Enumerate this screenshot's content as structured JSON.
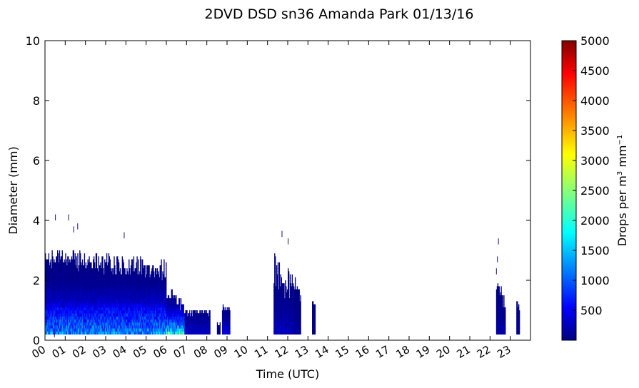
{
  "chart_data": {
    "type": "heatmap",
    "title": "2DVD DSD sn36 Amanda Park 01/13/16",
    "xlabel": "Time (UTC)",
    "ylabel": "Diameter (mm)",
    "colorbar_label_parts": [
      "Drops per m",
      "3",
      " mm",
      "−1"
    ],
    "xlim": [
      0,
      24
    ],
    "ylim": [
      0,
      10
    ],
    "x_ticks": [
      {
        "value": 0,
        "label": "00"
      },
      {
        "value": 1,
        "label": "01"
      },
      {
        "value": 2,
        "label": "02"
      },
      {
        "value": 3,
        "label": "03"
      },
      {
        "value": 4,
        "label": "04"
      },
      {
        "value": 5,
        "label": "05"
      },
      {
        "value": 6,
        "label": "06"
      },
      {
        "value": 7,
        "label": "07"
      },
      {
        "value": 8,
        "label": "08"
      },
      {
        "value": 9,
        "label": "09"
      },
      {
        "value": 10,
        "label": "10"
      },
      {
        "value": 11,
        "label": "11"
      },
      {
        "value": 12,
        "label": "12"
      },
      {
        "value": 13,
        "label": "13"
      },
      {
        "value": 14,
        "label": "14"
      },
      {
        "value": 15,
        "label": "15"
      },
      {
        "value": 16,
        "label": "16"
      },
      {
        "value": 17,
        "label": "17"
      },
      {
        "value": 18,
        "label": "18"
      },
      {
        "value": 19,
        "label": "19"
      },
      {
        "value": 20,
        "label": "20"
      },
      {
        "value": 21,
        "label": "21"
      },
      {
        "value": 22,
        "label": "22"
      },
      {
        "value": 23,
        "label": "23"
      }
    ],
    "y_ticks": [
      {
        "value": 0,
        "label": "0"
      },
      {
        "value": 2,
        "label": "2"
      },
      {
        "value": 4,
        "label": "4"
      },
      {
        "value": 6,
        "label": "6"
      },
      {
        "value": 8,
        "label": "8"
      },
      {
        "value": 10,
        "label": "10"
      }
    ],
    "colorbar_range": [
      0,
      5000
    ],
    "colorbar_ticks": [
      {
        "value": 500,
        "label": "500"
      },
      {
        "value": 1000,
        "label": "1000"
      },
      {
        "value": 1500,
        "label": "1500"
      },
      {
        "value": 2000,
        "label": "2000"
      },
      {
        "value": 2500,
        "label": "2500"
      },
      {
        "value": 3000,
        "label": "3000"
      },
      {
        "value": 3500,
        "label": "3500"
      },
      {
        "value": 4000,
        "label": "4000"
      },
      {
        "value": 4500,
        "label": "4500"
      },
      {
        "value": 5000,
        "label": "5000"
      }
    ],
    "colormap": "jet",
    "colormap_stops": [
      "#000080",
      "#0000ff",
      "#00ffff",
      "#ffff00",
      "#ff0000",
      "#800000"
    ],
    "regions": [
      {
        "t_start": 0.0,
        "t_end": 6.0,
        "profile": [
          [
            0.2,
            1200
          ],
          [
            0.5,
            900
          ],
          [
            0.9,
            600
          ],
          [
            1.3,
            250
          ],
          [
            1.8,
            80
          ],
          [
            2.4,
            20
          ],
          [
            3.2,
            5
          ]
        ],
        "top_start": 2.7,
        "top_end": 2.3,
        "top_jitter": 0.35
      },
      {
        "t_start": 6.0,
        "t_end": 6.9,
        "profile": [
          [
            0.2,
            1900
          ],
          [
            0.4,
            1100
          ],
          [
            0.8,
            500
          ],
          [
            1.1,
            150
          ],
          [
            1.5,
            30
          ]
        ],
        "top_start": 1.6,
        "top_end": 1.0,
        "top_jitter": 0.25
      },
      {
        "t_start": 6.9,
        "t_end": 8.15,
        "profile": [
          [
            0.2,
            300
          ],
          [
            0.6,
            120
          ],
          [
            0.9,
            40
          ]
        ],
        "top_start": 0.9,
        "top_end": 0.85,
        "top_jitter": 0.1
      },
      {
        "t_start": 8.5,
        "t_end": 8.65,
        "profile": [
          [
            0.2,
            40
          ],
          [
            0.5,
            10
          ]
        ],
        "top_start": 0.5,
        "top_end": 0.5,
        "top_jitter": 0.05
      },
      {
        "t_start": 8.75,
        "t_end": 9.15,
        "profile": [
          [
            0.2,
            400
          ],
          [
            0.6,
            120
          ],
          [
            1.0,
            30
          ]
        ],
        "top_start": 1.05,
        "top_end": 1.0,
        "top_jitter": 0.1
      },
      {
        "t_start": 11.3,
        "t_end": 12.25,
        "profile": [
          [
            0.3,
            250
          ],
          [
            0.8,
            120
          ],
          [
            1.5,
            40
          ],
          [
            2.5,
            10
          ],
          [
            3.4,
            2
          ]
        ],
        "top_start": 2.4,
        "top_end": 1.6,
        "top_jitter": 0.6
      },
      {
        "t_start": 12.25,
        "t_end": 12.65,
        "profile": [
          [
            0.3,
            120
          ],
          [
            0.8,
            50
          ],
          [
            1.4,
            15
          ],
          [
            1.9,
            4
          ]
        ],
        "top_start": 2.0,
        "top_end": 1.2,
        "top_jitter": 0.3
      },
      {
        "t_start": 13.2,
        "t_end": 13.35,
        "profile": [
          [
            0.7,
            20
          ],
          [
            1.2,
            5
          ]
        ],
        "top_start": 1.25,
        "top_end": 1.15,
        "top_jitter": 0.05
      },
      {
        "t_start": 22.3,
        "t_end": 22.75,
        "profile": [
          [
            0.3,
            150
          ],
          [
            0.8,
            60
          ],
          [
            1.4,
            20
          ],
          [
            1.9,
            5
          ]
        ],
        "top_start": 1.9,
        "top_end": 1.2,
        "top_jitter": 0.3
      },
      {
        "t_start": 23.3,
        "t_end": 23.45,
        "profile": [
          [
            0.3,
            80
          ],
          [
            0.7,
            30
          ],
          [
            1.2,
            8
          ]
        ],
        "top_start": 1.3,
        "top_end": 1.0,
        "top_jitter": 0.1
      }
    ],
    "isolated_points": [
      {
        "t": 0.5,
        "d": 4.0,
        "value": 15
      },
      {
        "t": 1.15,
        "d": 4.0,
        "value": 15
      },
      {
        "t": 1.6,
        "d": 3.7,
        "value": 15
      },
      {
        "t": 1.4,
        "d": 3.6,
        "value": 15
      },
      {
        "t": 3.9,
        "d": 3.4,
        "value": 15
      },
      {
        "t": 0.45,
        "d": 0.1,
        "value": 15
      },
      {
        "t": 22.4,
        "d": 3.2,
        "value": 15
      },
      {
        "t": 22.35,
        "d": 2.6,
        "value": 15
      },
      {
        "t": 22.3,
        "d": 2.2,
        "value": 15
      },
      {
        "t": 11.7,
        "d": 3.45,
        "value": 15
      },
      {
        "t": 12.0,
        "d": 3.2,
        "value": 15
      }
    ]
  }
}
